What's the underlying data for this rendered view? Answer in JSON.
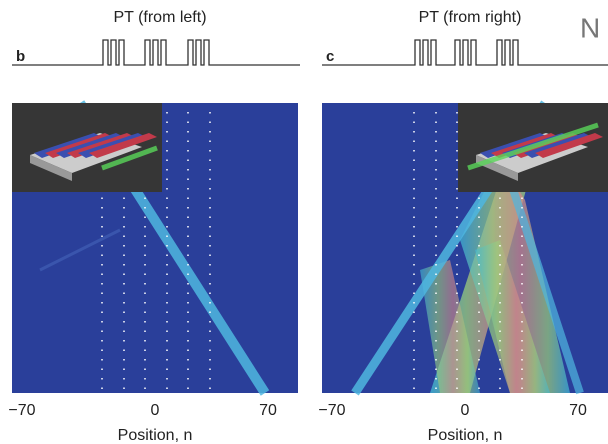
{
  "panels": [
    {
      "letter": "b",
      "title": "PT  (from left)",
      "xticks": [
        "−70",
        "0",
        "70"
      ],
      "xlabel": "Position, n"
    },
    {
      "letter": "c",
      "title": "PT  (from right)",
      "xticks": [
        "−70",
        "0",
        "70"
      ],
      "xlabel": "Position, n"
    }
  ],
  "corner_text": "N"
}
